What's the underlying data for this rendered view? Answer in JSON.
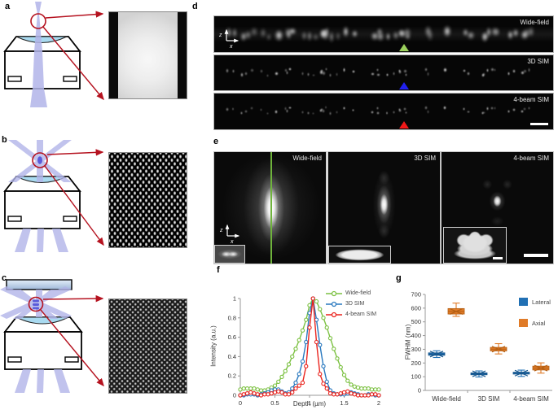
{
  "labels": {
    "a": "a",
    "b": "b",
    "c": "c",
    "d": "d",
    "e": "e",
    "f": "f",
    "g": "g"
  },
  "axes_badge": {
    "z": "z",
    "x": "x"
  },
  "panel_d": {
    "strips": [
      {
        "label": "Wide-field",
        "marker_color": "#9bd05c"
      },
      {
        "label": "3D SIM",
        "marker_color": "#2020f0"
      },
      {
        "label": "4-beam SIM",
        "marker_color": "#f01818"
      }
    ]
  },
  "panel_e": {
    "panels": [
      {
        "label": "Wide-field"
      },
      {
        "label": "3D SIM"
      },
      {
        "label": "4-beam SIM"
      }
    ]
  },
  "chart_data": [
    {
      "id": "f",
      "type": "line",
      "xlabel": "Depth (µm)",
      "ylabel": "Intensity (a.u.)",
      "xlim": [
        0,
        2
      ],
      "ylim": [
        0,
        1
      ],
      "xticks": [
        0,
        0.5,
        1,
        1.5,
        2
      ],
      "yticks": [
        0,
        0.2,
        0.4,
        0.6,
        0.8,
        1
      ],
      "legend_position": "top-right",
      "grid": false,
      "x": [
        0,
        0.05,
        0.1,
        0.15,
        0.2,
        0.25,
        0.3,
        0.35,
        0.4,
        0.45,
        0.5,
        0.55,
        0.6,
        0.65,
        0.7,
        0.75,
        0.8,
        0.85,
        0.9,
        0.95,
        1,
        1.05,
        1.1,
        1.15,
        1.2,
        1.25,
        1.3,
        1.35,
        1.4,
        1.45,
        1.5,
        1.55,
        1.6,
        1.65,
        1.7,
        1.75,
        1.8,
        1.85,
        1.9,
        1.95,
        2
      ],
      "series": [
        {
          "name": "Wide-field",
          "color": "#7cc142",
          "y": [
            0.06,
            0.07,
            0.07,
            0.07,
            0.07,
            0.06,
            0.05,
            0.05,
            0.06,
            0.08,
            0.1,
            0.14,
            0.19,
            0.25,
            0.32,
            0.4,
            0.48,
            0.57,
            0.67,
            0.78,
            0.93,
            1.0,
            0.97,
            0.89,
            0.8,
            0.7,
            0.59,
            0.48,
            0.38,
            0.29,
            0.21,
            0.15,
            0.11,
            0.09,
            0.08,
            0.07,
            0.07,
            0.07,
            0.06,
            0.06,
            0.06
          ]
        },
        {
          "name": "3D SIM",
          "color": "#2878bf",
          "y": [
            0.0,
            0.0,
            0.01,
            0.01,
            0.01,
            0.0,
            0.01,
            0.02,
            0.03,
            0.05,
            0.06,
            0.06,
            0.04,
            0.02,
            0.03,
            0.07,
            0.13,
            0.22,
            0.35,
            0.55,
            0.85,
            1.0,
            0.78,
            0.52,
            0.3,
            0.14,
            0.05,
            0.02,
            0.01,
            0.01,
            0.01,
            0.02,
            0.03,
            0.02,
            0.01,
            0.0,
            0.0,
            0.01,
            0.01,
            0.0,
            0.0
          ]
        },
        {
          "name": "4-beam SIM",
          "color": "#ea241e",
          "y": [
            0.0,
            0.01,
            0.02,
            0.03,
            0.02,
            0.01,
            0.0,
            0.01,
            0.01,
            0.02,
            0.03,
            0.04,
            0.03,
            0.01,
            0.01,
            0.03,
            0.07,
            0.1,
            0.13,
            0.3,
            0.7,
            1.0,
            0.55,
            0.22,
            0.12,
            0.07,
            0.02,
            0.01,
            0.01,
            0.02,
            0.03,
            0.04,
            0.02,
            0.01,
            0.0,
            0.0,
            0.0,
            0.0,
            0.01,
            0.01,
            0.0
          ]
        }
      ]
    },
    {
      "id": "g",
      "type": "box",
      "ylabel": "FWHM (nm)",
      "ylim": [
        0,
        700
      ],
      "yticks": [
        0,
        100,
        200,
        300,
        400,
        500,
        600,
        700
      ],
      "categories": [
        "Wide-field",
        "3D SIM",
        "4-beam SIM"
      ],
      "legend": [
        "Lateral",
        "Axial"
      ],
      "series": [
        {
          "name": "Lateral",
          "color": "#2170b4",
          "dark": "#17568c",
          "boxes": [
            {
              "whislo": 240,
              "q1": 256,
              "med": 265,
              "q3": 274,
              "whishi": 289
            },
            {
              "whislo": 98,
              "q1": 114,
              "med": 121,
              "q3": 128,
              "whishi": 142
            },
            {
              "whislo": 102,
              "q1": 119,
              "med": 126,
              "q3": 133,
              "whishi": 148
            }
          ]
        },
        {
          "name": "Axial",
          "color": "#e07b28",
          "dark": "#b55f12",
          "boxes": [
            {
              "whislo": 540,
              "q1": 557,
              "med": 576,
              "q3": 597,
              "whishi": 637
            },
            {
              "whislo": 266,
              "q1": 288,
              "med": 301,
              "q3": 314,
              "whishi": 341
            },
            {
              "whislo": 126,
              "q1": 149,
              "med": 163,
              "q3": 177,
              "whishi": 201
            }
          ]
        }
      ]
    }
  ]
}
